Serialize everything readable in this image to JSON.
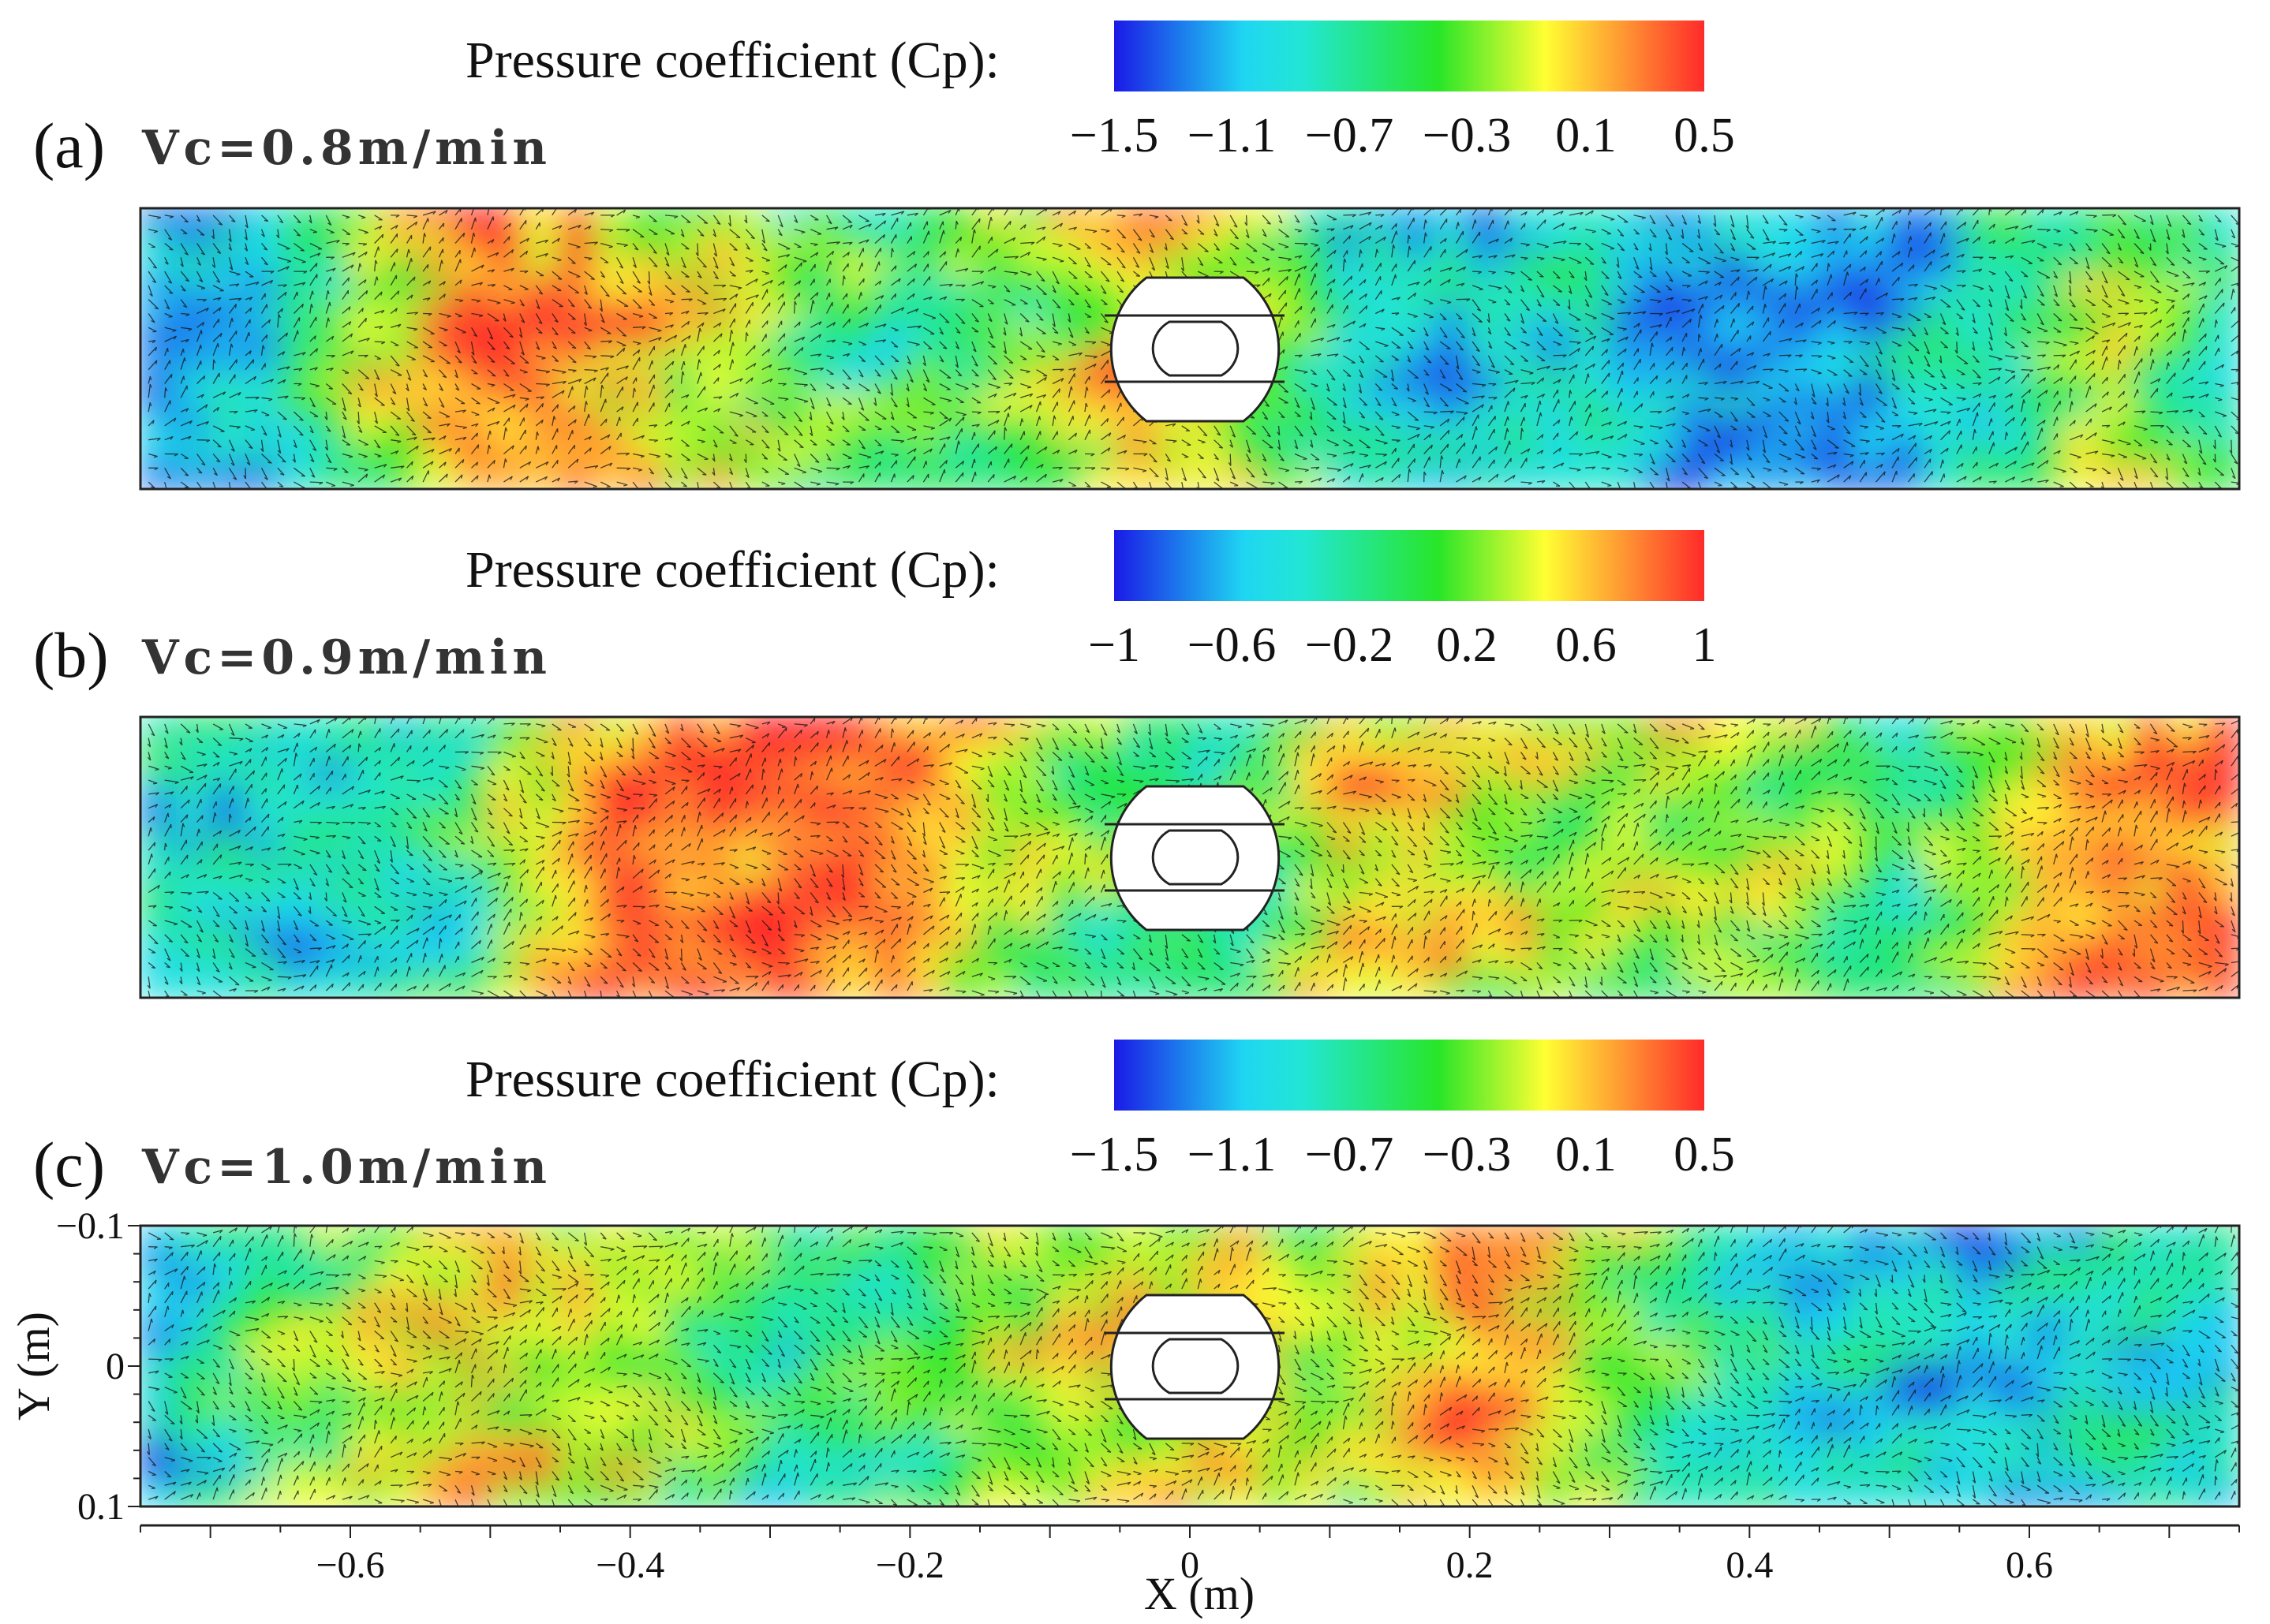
{
  "colormap": {
    "stops": [
      "#1a1ae6",
      "#1fd6f2",
      "#22e6d4",
      "#28e628",
      "#ffff33",
      "#ff9933",
      "#ff2a2a"
    ]
  },
  "chart_data": [
    {
      "type": "heatmap",
      "panel_letter": "(a)",
      "title": "Vc=0.8m/min",
      "colorbar_title": "Pressure coefficient (Cp):",
      "colorbar_ticks": [
        "−1.5",
        "−1.1",
        "−0.7",
        "−0.3",
        "0.1",
        "0.5"
      ],
      "colorbar_range": [
        -1.5,
        0.5
      ],
      "field_profile": [
        0.15,
        0.25,
        0.6,
        0.95,
        0.9,
        0.7,
        0.5,
        0.45,
        0.55,
        0.8,
        0.7,
        0.3,
        0.25,
        0.35,
        0.15,
        0.1,
        0.2,
        0.45,
        0.7,
        0.3
      ],
      "xlim": [
        -0.75,
        0.75
      ],
      "ylim": [
        -0.1,
        0.1
      ]
    },
    {
      "type": "heatmap",
      "panel_letter": "(b)",
      "title": "Vc=0.9m/min",
      "colorbar_title": "Pressure coefficient (Cp):",
      "colorbar_ticks": [
        "−1",
        "−0.6",
        "−0.2",
        "0.2",
        "0.6",
        "1"
      ],
      "colorbar_range": [
        -1,
        1
      ],
      "field_profile": [
        0.35,
        0.3,
        0.3,
        0.45,
        0.9,
        0.95,
        0.95,
        0.9,
        0.6,
        0.5,
        0.45,
        0.85,
        0.7,
        0.6,
        0.65,
        0.6,
        0.45,
        0.7,
        0.9,
        0.95
      ],
      "xlim": [
        -0.75,
        0.75
      ],
      "ylim": [
        -0.1,
        0.1
      ]
    },
    {
      "type": "heatmap",
      "panel_letter": "(c)",
      "title": "Vc=1.0m/min",
      "colorbar_title": "Pressure coefficient (Cp):",
      "colorbar_ticks": [
        "−1.5",
        "−1.1",
        "−0.7",
        "−0.3",
        "0.1",
        "0.5"
      ],
      "colorbar_range": [
        -1.5,
        0.5
      ],
      "field_profile": [
        0.15,
        0.5,
        0.65,
        0.75,
        0.7,
        0.55,
        0.35,
        0.55,
        0.65,
        0.7,
        0.75,
        0.6,
        0.95,
        0.7,
        0.45,
        0.3,
        0.25,
        0.2,
        0.35,
        0.25
      ],
      "xlim": [
        -0.75,
        0.75
      ],
      "ylim": [
        -0.1,
        0.1
      ]
    }
  ],
  "axes": {
    "xlabel": "X (m)",
    "ylabel": "Y (m)",
    "xticks": [
      {
        "value": -0.6,
        "label": "−0.6"
      },
      {
        "value": -0.4,
        "label": "−0.4"
      },
      {
        "value": -0.2,
        "label": "−0.2"
      },
      {
        "value": 0,
        "label": "0"
      },
      {
        "value": 0.2,
        "label": "0.2"
      },
      {
        "value": 0.4,
        "label": "0.4"
      },
      {
        "value": 0.6,
        "label": "0.6"
      }
    ],
    "yticks": [
      {
        "value": -0.1,
        "label": "−0.1"
      },
      {
        "value": 0,
        "label": "0"
      },
      {
        "value": 0.1,
        "label": "0.1"
      }
    ]
  }
}
